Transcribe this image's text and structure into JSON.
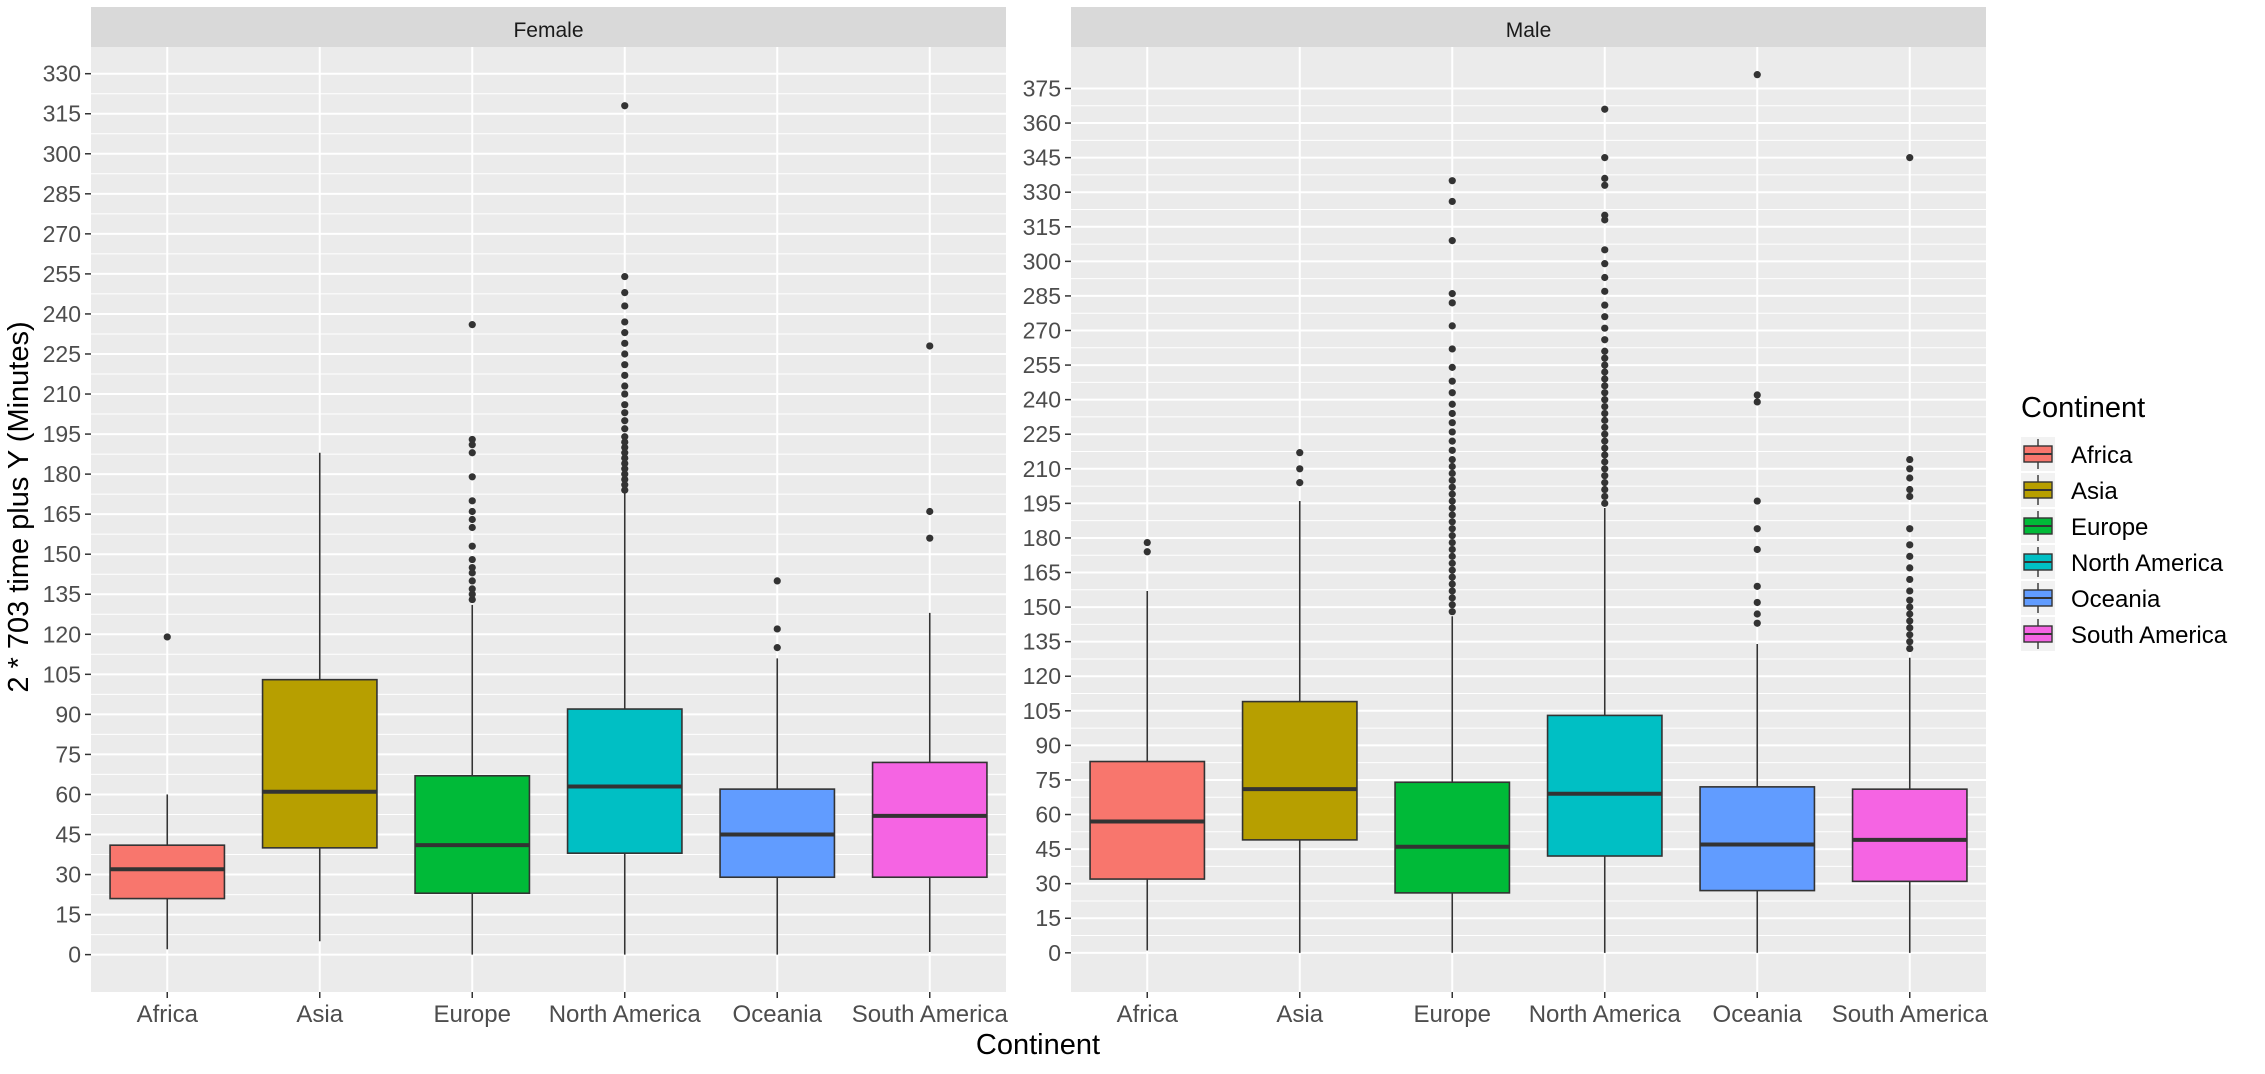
{
  "chart_data": {
    "type": "boxplot",
    "xlabel": "Continent",
    "ylabel": "2 * 703 time plus Y (Minutes)",
    "categories": [
      "Africa",
      "Asia",
      "Europe",
      "North America",
      "Oceania",
      "South America"
    ],
    "legend": {
      "title": "Continent",
      "placement": "right",
      "entries": [
        {
          "label": "Africa",
          "color": "#F8766D"
        },
        {
          "label": "Asia",
          "color": "#B79F00"
        },
        {
          "label": "Europe",
          "color": "#00BA38"
        },
        {
          "label": "North America",
          "color": "#00BFC4"
        },
        {
          "label": "Oceania",
          "color": "#619CFF"
        },
        {
          "label": "South America",
          "color": "#F564E3"
        }
      ]
    },
    "grid": true,
    "panels": [
      {
        "strip": "Female",
        "ylim": [
          -14,
          340
        ],
        "yticks": [
          0,
          15,
          30,
          45,
          60,
          75,
          90,
          105,
          120,
          135,
          150,
          165,
          180,
          195,
          210,
          225,
          240,
          255,
          270,
          285,
          300,
          315,
          330
        ],
        "boxes": [
          {
            "category": "Africa",
            "whisker_low": 2,
            "q1": 21,
            "median": 32,
            "q3": 41,
            "whisker_high": 60,
            "outliers": [
              119
            ]
          },
          {
            "category": "Asia",
            "whisker_low": 5,
            "q1": 40,
            "median": 61,
            "q3": 103,
            "whisker_high": 188,
            "outliers": []
          },
          {
            "category": "Europe",
            "whisker_low": 0,
            "q1": 23,
            "median": 41,
            "q3": 67,
            "whisker_high": 131,
            "outliers": [
              133,
              135,
              137,
              140,
              143,
              145,
              148,
              153,
              160,
              163,
              166,
              170,
              179,
              188,
              191,
              193,
              236
            ]
          },
          {
            "category": "North America",
            "whisker_low": 0,
            "q1": 38,
            "median": 63,
            "q3": 92,
            "whisker_high": 173,
            "outliers": [
              174,
              176,
              178,
              180,
              182,
              184,
              186,
              188,
              190,
              192,
              194,
              197,
              200,
              203,
              206,
              210,
              213,
              217,
              221,
              225,
              229,
              233,
              237,
              243,
              248,
              254,
              318
            ]
          },
          {
            "category": "Oceania",
            "whisker_low": 0,
            "q1": 29,
            "median": 45,
            "q3": 62,
            "whisker_high": 111,
            "outliers": [
              115,
              122,
              140
            ]
          },
          {
            "category": "South America",
            "whisker_low": 1,
            "q1": 29,
            "median": 52,
            "q3": 72,
            "whisker_high": 128,
            "outliers": [
              156,
              166,
              228
            ]
          }
        ]
      },
      {
        "strip": "Male",
        "ylim": [
          -17,
          393
        ],
        "yticks": [
          0,
          15,
          30,
          45,
          60,
          75,
          90,
          105,
          120,
          135,
          150,
          165,
          180,
          195,
          210,
          225,
          240,
          255,
          270,
          285,
          300,
          315,
          330,
          345,
          360,
          375
        ],
        "boxes": [
          {
            "category": "Africa",
            "whisker_low": 1,
            "q1": 32,
            "median": 57,
            "q3": 83,
            "whisker_high": 157,
            "outliers": [
              174,
              178
            ]
          },
          {
            "category": "Asia",
            "whisker_low": 0,
            "q1": 49,
            "median": 71,
            "q3": 109,
            "whisker_high": 196,
            "outliers": [
              204,
              210,
              217
            ]
          },
          {
            "category": "Europe",
            "whisker_low": 0,
            "q1": 26,
            "median": 46,
            "q3": 74,
            "whisker_high": 146,
            "outliers": [
              148,
              151,
              154,
              157,
              160,
              163,
              166,
              169,
              172,
              175,
              178,
              181,
              184,
              187,
              190,
              193,
              196,
              199,
              202,
              205,
              208,
              211,
              214,
              218,
              222,
              226,
              230,
              234,
              238,
              243,
              248,
              254,
              262,
              272,
              282,
              286,
              309,
              326,
              335
            ]
          },
          {
            "category": "North America",
            "whisker_low": 0,
            "q1": 42,
            "median": 69,
            "q3": 103,
            "whisker_high": 193,
            "outliers": [
              195,
              198,
              201,
              204,
              207,
              210,
              213,
              216,
              219,
              222,
              225,
              228,
              231,
              234,
              237,
              240,
              243,
              246,
              249,
              252,
              255,
              258,
              261,
              266,
              271,
              276,
              281,
              287,
              293,
              299,
              305,
              318,
              320,
              333,
              336,
              345,
              366
            ]
          },
          {
            "category": "Oceania",
            "whisker_low": 0,
            "q1": 27,
            "median": 47,
            "q3": 72,
            "whisker_high": 134,
            "outliers": [
              143,
              147,
              152,
              159,
              175,
              184,
              196,
              239,
              242,
              381
            ]
          },
          {
            "category": "South America",
            "whisker_low": 0,
            "q1": 31,
            "median": 49,
            "q3": 71,
            "whisker_high": 128,
            "outliers": [
              132,
              135,
              138,
              141,
              144,
              147,
              150,
              153,
              157,
              162,
              167,
              172,
              177,
              184,
              198,
              201,
              206,
              210,
              214,
              345
            ]
          }
        ]
      }
    ]
  }
}
